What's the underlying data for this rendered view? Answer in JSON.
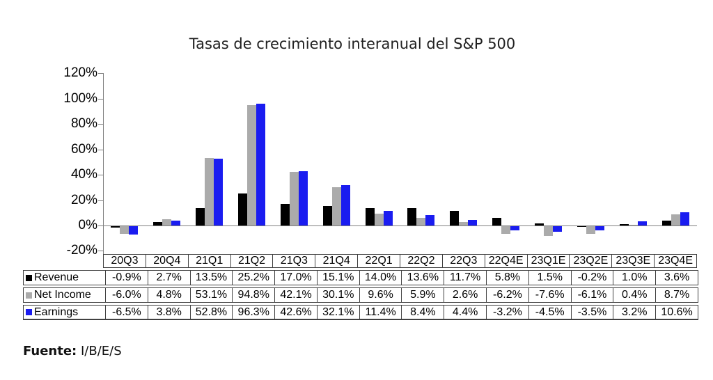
{
  "title": "Tasas de crecimiento interanual del S&P 500",
  "source": {
    "label": "Fuente:",
    "value": " I/B/E/S"
  },
  "colors": {
    "revenue": "#000000",
    "net_income": "#ABABAB",
    "earnings": "#1A1CF0",
    "axis": "#7f7f7f",
    "table_border": "#404040"
  },
  "chart_data": {
    "type": "bar",
    "title": "Tasas de crecimiento interanual del S&P 500",
    "categories": [
      "20Q3",
      "20Q4",
      "21Q1",
      "21Q2",
      "21Q3",
      "21Q4",
      "22Q1",
      "22Q2",
      "22Q3",
      "22Q4E",
      "23Q1E",
      "23Q2E",
      "23Q3E",
      "23Q4E"
    ],
    "series": [
      {
        "name": "Revenue",
        "color": "#000000",
        "values": [
          -0.9,
          2.7,
          13.5,
          25.2,
          17.0,
          15.1,
          14.0,
          13.6,
          11.7,
          5.8,
          1.5,
          -0.2,
          1.0,
          3.6
        ]
      },
      {
        "name": "Net Income",
        "color": "#ABABAB",
        "values": [
          -6.0,
          4.8,
          53.1,
          94.8,
          42.1,
          30.1,
          9.6,
          5.9,
          2.6,
          -6.2,
          -7.6,
          -6.1,
          0.4,
          8.7
        ]
      },
      {
        "name": "Earnings",
        "color": "#1A1CF0",
        "values": [
          -6.5,
          3.8,
          52.8,
          96.3,
          42.6,
          32.1,
          11.4,
          8.4,
          4.4,
          -3.2,
          -4.5,
          -3.5,
          3.2,
          10.6
        ]
      }
    ],
    "ylabel": "",
    "xlabel": "",
    "ylim": [
      -20,
      120
    ],
    "ytick_step": 20,
    "ytick_labels": [
      "120%",
      "100%",
      "80%",
      "60%",
      "40%",
      "20%",
      "0%",
      "-20%"
    ],
    "value_suffix": "%",
    "grid": false,
    "legend_position": "table-left-column"
  }
}
